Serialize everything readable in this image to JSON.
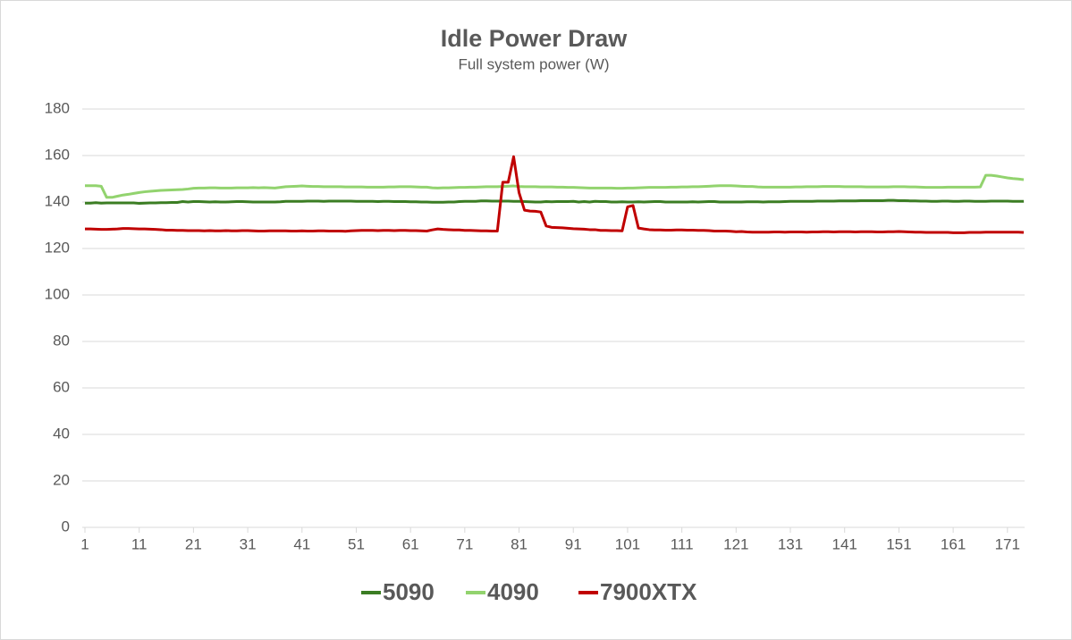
{
  "chart_data": {
    "type": "line",
    "title": "Idle Power Draw",
    "subtitle": "Full system power (W)",
    "x": [
      1,
      2,
      3,
      4,
      5,
      6,
      7,
      8,
      9,
      10,
      11,
      12,
      13,
      14,
      15,
      16,
      17,
      18,
      19,
      20,
      21,
      22,
      23,
      24,
      25,
      26,
      27,
      28,
      29,
      30,
      31,
      32,
      33,
      34,
      35,
      36,
      37,
      38,
      39,
      40,
      41,
      42,
      43,
      44,
      45,
      46,
      47,
      48,
      49,
      50,
      51,
      52,
      53,
      54,
      55,
      56,
      57,
      58,
      59,
      60,
      61,
      62,
      63,
      64,
      65,
      66,
      67,
      68,
      69,
      70,
      71,
      72,
      73,
      74,
      75,
      76,
      77,
      78,
      79,
      80,
      81,
      82,
      83,
      84,
      85,
      86,
      87,
      88,
      89,
      90,
      91,
      92,
      93,
      94,
      95,
      96,
      97,
      98,
      99,
      100,
      101,
      102,
      103,
      104,
      105,
      106,
      107,
      108,
      109,
      110,
      111,
      112,
      113,
      114,
      115,
      116,
      117,
      118,
      119,
      120,
      121,
      122,
      123,
      124,
      125,
      126,
      127,
      128,
      129,
      130,
      131,
      132,
      133,
      134,
      135,
      136,
      137,
      138,
      139,
      140,
      141,
      142,
      143,
      144,
      145,
      146,
      147,
      148,
      149,
      150,
      151,
      152,
      153,
      154,
      155,
      156,
      157,
      158,
      159,
      160,
      161,
      162,
      163,
      164,
      165,
      166,
      167,
      168,
      169,
      170,
      171,
      172,
      173,
      174
    ],
    "series": [
      {
        "name": "5090",
        "color": "#3b7d23",
        "values": [
          139.5,
          139.5,
          139.7,
          139.5,
          139.6,
          139.6,
          139.6,
          139.6,
          139.6,
          139.6,
          139.4,
          139.5,
          139.6,
          139.6,
          139.7,
          139.7,
          139.8,
          139.8,
          140.2,
          140,
          140.2,
          140.2,
          140.1,
          140,
          140.1,
          140,
          140,
          140.1,
          140.2,
          140.2,
          140.1,
          140,
          140,
          140,
          140,
          140,
          140.1,
          140.3,
          140.3,
          140.3,
          140.3,
          140.4,
          140.4,
          140.4,
          140.3,
          140.4,
          140.4,
          140.4,
          140.4,
          140.4,
          140.3,
          140.3,
          140.3,
          140.3,
          140.2,
          140.3,
          140.3,
          140.2,
          140.2,
          140.2,
          140.1,
          140.1,
          140,
          140,
          139.9,
          139.9,
          139.9,
          140,
          140,
          140.2,
          140.3,
          140.3,
          140.3,
          140.5,
          140.5,
          140.4,
          140.4,
          140.4,
          140.4,
          140.3,
          140.3,
          140.2,
          140.1,
          140,
          140,
          140.2,
          140.1,
          140.2,
          140.2,
          140.2,
          140.3,
          140,
          140.2,
          140,
          140.3,
          140.2,
          140.2,
          140,
          140,
          140.1,
          140,
          140,
          140.1,
          140,
          140.1,
          140.2,
          140.2,
          140,
          140,
          140,
          140,
          140,
          140.1,
          140,
          140.1,
          140.2,
          140.2,
          140,
          140,
          140,
          140,
          140,
          140.1,
          140.1,
          140.1,
          140,
          140.1,
          140.1,
          140.1,
          140.2,
          140.3,
          140.3,
          140.3,
          140.3,
          140.3,
          140.4,
          140.4,
          140.4,
          140.4,
          140.5,
          140.5,
          140.5,
          140.5,
          140.6,
          140.6,
          140.6,
          140.6,
          140.6,
          140.7,
          140.7,
          140.6,
          140.6,
          140.5,
          140.5,
          140.4,
          140.4,
          140.3,
          140.3,
          140.4,
          140.4,
          140.3,
          140.3,
          140.4,
          140.4,
          140.3,
          140.3,
          140.3,
          140.4,
          140.4,
          140.4,
          140.4,
          140.3,
          140.3,
          140.3
        ]
      },
      {
        "name": "4090",
        "color": "#92d36e",
        "values": [
          147,
          147,
          147,
          146.8,
          142,
          142,
          142.5,
          143,
          143.3,
          143.7,
          144.1,
          144.4,
          144.6,
          144.8,
          145,
          145.1,
          145.2,
          145.3,
          145.4,
          145.6,
          145.9,
          146,
          146,
          146.1,
          146.1,
          146,
          146,
          146,
          146.1,
          146.1,
          146.1,
          146.2,
          146.1,
          146.2,
          146.1,
          146,
          146.3,
          146.6,
          146.7,
          146.8,
          146.9,
          146.8,
          146.7,
          146.7,
          146.6,
          146.6,
          146.6,
          146.6,
          146.5,
          146.5,
          146.5,
          146.5,
          146.4,
          146.4,
          146.4,
          146.4,
          146.5,
          146.5,
          146.6,
          146.6,
          146.6,
          146.5,
          146.4,
          146.4,
          146.1,
          146,
          146.1,
          146.1,
          146.2,
          146.3,
          146.3,
          146.4,
          146.4,
          146.5,
          146.6,
          146.6,
          146.6,
          146.7,
          146.8,
          146.9,
          146.7,
          146.6,
          146.6,
          146.6,
          146.5,
          146.5,
          146.5,
          146.4,
          146.4,
          146.3,
          146.3,
          146.2,
          146.1,
          146,
          146,
          146,
          146,
          146,
          145.9,
          145.9,
          146,
          146,
          146.1,
          146.2,
          146.3,
          146.3,
          146.3,
          146.3,
          146.4,
          146.4,
          146.5,
          146.5,
          146.6,
          146.6,
          146.7,
          146.8,
          146.9,
          147,
          147,
          147,
          146.9,
          146.8,
          146.7,
          146.7,
          146.5,
          146.4,
          146.4,
          146.4,
          146.4,
          146.4,
          146.4,
          146.5,
          146.5,
          146.6,
          146.6,
          146.6,
          146.7,
          146.7,
          146.7,
          146.7,
          146.6,
          146.6,
          146.6,
          146.6,
          146.5,
          146.5,
          146.5,
          146.5,
          146.5,
          146.6,
          146.6,
          146.6,
          146.5,
          146.5,
          146.4,
          146.3,
          146.3,
          146.3,
          146.3,
          146.4,
          146.4,
          146.4,
          146.4,
          146.4,
          146.4,
          146.5,
          151.5,
          151.5,
          151.2,
          150.8,
          150.4,
          150.1,
          149.9,
          149.6
        ]
      },
      {
        "name": "7900XTX",
        "color": "#c00000",
        "values": [
          128.4,
          128.4,
          128.3,
          128.2,
          128.2,
          128.3,
          128.4,
          128.6,
          128.6,
          128.5,
          128.4,
          128.4,
          128.3,
          128.2,
          128.1,
          127.9,
          127.9,
          127.8,
          127.8,
          127.7,
          127.7,
          127.7,
          127.6,
          127.7,
          127.6,
          127.6,
          127.7,
          127.6,
          127.6,
          127.7,
          127.7,
          127.6,
          127.5,
          127.5,
          127.6,
          127.6,
          127.6,
          127.6,
          127.5,
          127.5,
          127.6,
          127.5,
          127.5,
          127.6,
          127.6,
          127.5,
          127.5,
          127.5,
          127.4,
          127.6,
          127.7,
          127.8,
          127.8,
          127.8,
          127.7,
          127.8,
          127.8,
          127.7,
          127.8,
          127.8,
          127.7,
          127.7,
          127.6,
          127.5,
          128,
          128.4,
          128.2,
          128.1,
          128,
          128,
          127.8,
          127.8,
          127.7,
          127.6,
          127.6,
          127.5,
          127.5,
          148.5,
          148.5,
          159.5,
          144,
          136.5,
          136.1,
          136,
          135.7,
          129.7,
          129.1,
          129,
          128.9,
          128.7,
          128.5,
          128.4,
          128.3,
          128.1,
          128.1,
          127.8,
          127.8,
          127.7,
          127.7,
          127.6,
          137.9,
          138.5,
          128.8,
          128.4,
          128.1,
          128,
          128,
          127.9,
          127.9,
          128,
          128,
          127.9,
          127.9,
          127.8,
          127.8,
          127.7,
          127.5,
          127.5,
          127.5,
          127.4,
          127.2,
          127.3,
          127.1,
          127,
          127,
          127,
          127,
          127.1,
          127.1,
          127,
          127.1,
          127.1,
          127.1,
          127,
          127.1,
          127.1,
          127.2,
          127.2,
          127.1,
          127.2,
          127.2,
          127.2,
          127.1,
          127.2,
          127.2,
          127.2,
          127.1,
          127.1,
          127.2,
          127.2,
          127.3,
          127.2,
          127.1,
          127,
          127,
          126.9,
          126.9,
          126.9,
          126.9,
          126.9,
          126.8,
          126.8,
          126.8,
          126.9,
          126.9,
          126.9,
          127,
          127,
          127,
          127,
          127,
          127,
          127,
          126.9
        ]
      }
    ],
    "xlim": [
      1,
      174
    ],
    "xticks": [
      1,
      11,
      21,
      31,
      41,
      51,
      61,
      71,
      81,
      91,
      101,
      111,
      121,
      131,
      141,
      151,
      161,
      171
    ],
    "ylim": [
      0,
      180
    ],
    "yticks": [
      0,
      20,
      40,
      60,
      80,
      100,
      120,
      140,
      160,
      180
    ],
    "grid": true,
    "legend": "bottom"
  }
}
